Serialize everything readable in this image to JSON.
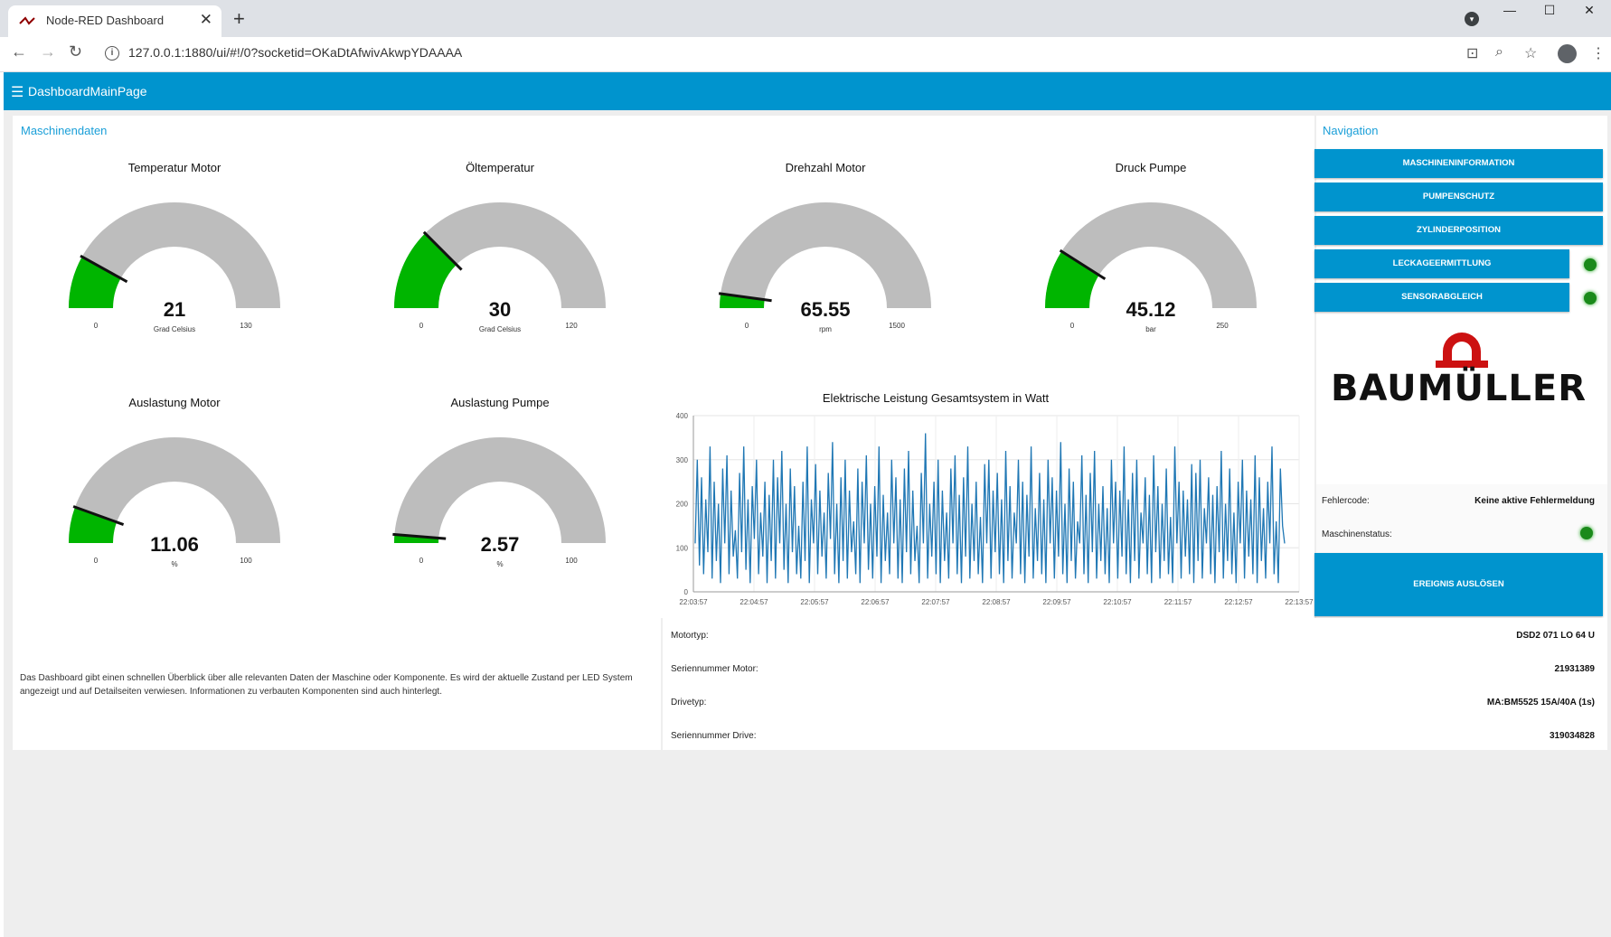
{
  "browser": {
    "tab_title": "Node-RED Dashboard",
    "tab_close": "✕",
    "new_tab": "+",
    "url": "127.0.0.1:1880/ui/#!/0?socketid=OKaDtAfwivAkwpYDAAAA",
    "window_controls": [
      "—",
      "☐",
      "✕"
    ]
  },
  "header": {
    "title": "DashboardMainPage"
  },
  "machine": {
    "group_title": "Maschinendaten",
    "gauges": [
      {
        "title": "Temperatur Motor",
        "value": "21",
        "unit": "Grad Celsius",
        "min": "0",
        "max": "130",
        "min_val": 0,
        "max_val": 130,
        "num": 21
      },
      {
        "title": "Öltemperatur",
        "value": "30",
        "unit": "Grad Celsius",
        "min": "0",
        "max": "120",
        "min_val": 0,
        "max_val": 120,
        "num": 30
      },
      {
        "title": "Drehzahl Motor",
        "value": "65.55",
        "unit": "rpm",
        "min": "0",
        "max": "1500",
        "min_val": 0,
        "max_val": 1500,
        "num": 65.55
      },
      {
        "title": "Druck Pumpe",
        "value": "45.12",
        "unit": "bar",
        "min": "0",
        "max": "250",
        "min_val": 0,
        "max_val": 250,
        "num": 45.12
      },
      {
        "title": "Auslastung Motor",
        "value": "11.06",
        "unit": "%",
        "min": "0",
        "max": "100",
        "min_val": 0,
        "max_val": 100,
        "num": 11.06
      },
      {
        "title": "Auslastung Pumpe",
        "value": "2.57",
        "unit": "%",
        "min": "0",
        "max": "100",
        "min_val": 0,
        "max_val": 100,
        "num": 2.57
      }
    ],
    "colors": {
      "gauge_fill": "#00b500",
      "gauge_track": "#bdbdbd",
      "needle": "#111111",
      "accent": "#0094ce",
      "line": "#1f77b4"
    }
  },
  "chart_data": {
    "type": "line",
    "title": "Elektrische Leistung Gesamtsystem in Watt",
    "ylim": [
      0,
      400
    ],
    "yticks": [
      "0",
      "100",
      "200",
      "300",
      "400"
    ],
    "xticks": [
      "22:03:57",
      "22:04:57",
      "22:05:57",
      "22:06:57",
      "22:07:57",
      "22:08:57",
      "22:09:57",
      "22:10:57",
      "22:11:57",
      "22:12:57",
      "22:13:57"
    ],
    "series": [
      {
        "values": [
          110,
          300,
          60,
          260,
          40,
          210,
          90,
          330,
          30,
          250,
          70,
          200,
          20,
          280,
          110,
          310,
          40,
          230,
          80,
          140,
          30,
          270,
          90,
          330,
          50,
          210,
          20,
          240,
          120,
          300,
          40,
          180,
          80,
          250,
          20,
          220,
          70,
          300,
          30,
          260,
          110,
          320,
          50,
          200,
          20,
          280,
          90,
          240,
          40,
          150,
          30,
          250,
          70,
          330,
          20,
          210,
          110,
          290,
          40,
          230,
          80,
          180,
          30,
          270,
          120,
          340,
          40,
          200,
          20,
          260,
          70,
          300,
          30,
          230,
          90,
          160,
          40,
          280,
          20,
          250,
          110,
          310,
          50,
          200,
          30,
          240,
          80,
          330,
          20,
          220,
          70,
          180,
          40,
          300,
          110,
          260,
          30,
          210,
          20,
          280,
          90,
          320,
          40,
          230,
          70,
          150,
          20,
          270,
          110,
          360,
          30,
          200,
          80,
          250,
          40,
          300,
          20,
          230,
          70,
          180,
          30,
          280,
          110,
          310,
          40,
          220,
          20,
          260,
          80,
          330,
          30,
          200,
          70,
          250,
          40,
          170,
          20,
          290,
          110,
          300,
          30,
          230,
          90,
          270,
          40,
          210,
          20,
          320,
          70,
          240,
          30,
          180,
          110,
          300,
          40,
          250,
          20,
          220,
          80,
          330,
          30,
          190,
          70,
          270,
          40,
          210,
          20,
          300,
          110,
          260,
          30,
          230,
          80,
          340,
          40,
          200,
          20,
          280,
          70,
          250,
          30,
          160,
          110,
          310,
          40,
          220,
          20,
          270,
          90,
          320,
          30,
          200,
          70,
          240,
          40,
          190,
          20,
          300,
          110,
          250,
          30,
          230,
          80,
          330,
          40,
          210,
          20,
          270,
          70,
          300,
          30,
          180,
          110,
          260,
          40,
          220,
          20,
          310,
          90,
          240,
          30,
          200,
          70,
          280,
          40,
          170,
          20,
          330,
          110,
          250,
          30,
          230,
          80,
          210,
          40,
          290,
          20,
          270,
          70,
          300,
          30,
          190,
          110,
          260,
          40,
          220,
          20,
          240,
          90,
          320,
          30,
          200,
          70,
          280,
          40,
          180,
          20,
          250,
          110,
          300,
          30,
          230,
          80,
          210,
          40,
          310,
          20,
          260,
          70,
          190,
          30,
          250,
          110,
          330,
          40,
          160,
          20,
          280,
          150,
          110
        ]
      }
    ]
  },
  "navigation": {
    "group_title": "Navigation",
    "buttons": [
      "MASCHINENINFORMATION",
      "PUMPENSCHUTZ",
      "ZYLINDERPOSITION",
      "LECKAGEERMITTLUNG",
      "SENSORABGLEICH"
    ],
    "led_color": "#1a8a1a"
  },
  "logo": {
    "text": "BAUMÜLLER",
    "color": "#cc1111"
  },
  "status": {
    "fehlercode_label": "Fehlercode:",
    "fehlercode_value": "Keine aktive Fehlermeldung",
    "maschinenstatus_label": "Maschinenstatus:"
  },
  "event_button": "EREIGNIS AUSLÖSEN",
  "description": "Das Dashboard gibt einen schnellen Überblick über alle relevanten Daten der Maschine oder Komponente. Es wird der aktuelle Zustand per LED System angezeigt und auf Detailseiten verwiesen. Informationen zu verbauten Komponenten sind auch hinterlegt.",
  "components": [
    {
      "label": "Motortyp:",
      "value": "DSD2 071 LO 64 U"
    },
    {
      "label": "Seriennummer Motor:",
      "value": "21931389"
    },
    {
      "label": "Drivetyp:",
      "value": "MA:BM5525 15A/40A (1s)"
    },
    {
      "label": "Seriennummer Drive:",
      "value": "319034828"
    }
  ]
}
